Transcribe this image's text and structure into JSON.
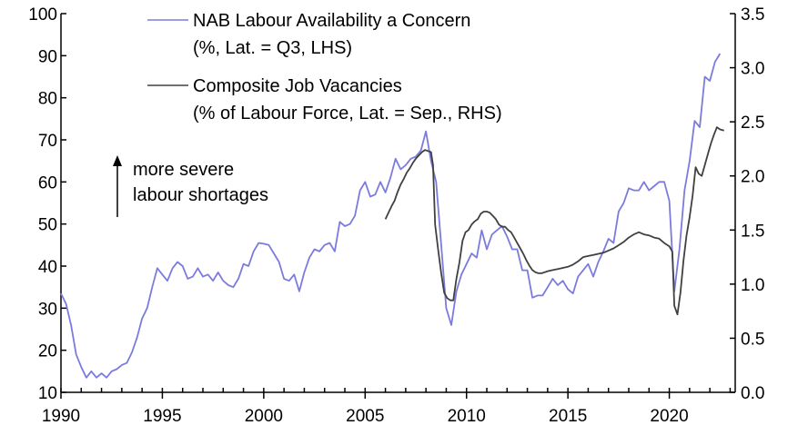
{
  "chart_data": {
    "type": "line",
    "title": "",
    "xlabel": "",
    "ylabel": "",
    "x_ticks": [
      "1990",
      "1995",
      "2000",
      "2005",
      "2010",
      "2015",
      "2020"
    ],
    "x_range": [
      1990.0,
      2023.25
    ],
    "y_left": {
      "range": [
        10,
        100
      ],
      "ticks": [
        "10",
        "20",
        "30",
        "40",
        "50",
        "60",
        "70",
        "80",
        "90",
        "100"
      ]
    },
    "y_right": {
      "range": [
        0.0,
        3.5
      ],
      "ticks": [
        "0.0",
        "0.5",
        "1.0",
        "1.5",
        "2.0",
        "2.5",
        "3.0",
        "3.5"
      ]
    },
    "grid": false,
    "legend_position": "top-center",
    "series": [
      {
        "name": "NAB Labour Availability a Concern",
        "name_line2": "(%, Lat. = Q3, LHS)",
        "axis": "left",
        "color": "#7b7bdf",
        "points": [
          [
            1990.0,
            33.5
          ],
          [
            1990.25,
            31.0
          ],
          [
            1990.5,
            26.0
          ],
          [
            1990.75,
            19.0
          ],
          [
            1991.0,
            16.0
          ],
          [
            1991.25,
            13.5
          ],
          [
            1991.5,
            15.0
          ],
          [
            1991.75,
            13.5
          ],
          [
            1992.0,
            14.5
          ],
          [
            1992.25,
            13.5
          ],
          [
            1992.5,
            15.0
          ],
          [
            1992.75,
            15.5
          ],
          [
            1993.0,
            16.5
          ],
          [
            1993.25,
            17.0
          ],
          [
            1993.5,
            19.5
          ],
          [
            1993.75,
            23.0
          ],
          [
            1994.0,
            27.5
          ],
          [
            1994.25,
            30.0
          ],
          [
            1994.5,
            35.0
          ],
          [
            1994.75,
            39.5
          ],
          [
            1995.0,
            38.0
          ],
          [
            1995.25,
            36.5
          ],
          [
            1995.5,
            39.5
          ],
          [
            1995.75,
            41.0
          ],
          [
            1996.0,
            40.0
          ],
          [
            1996.25,
            37.0
          ],
          [
            1996.5,
            37.5
          ],
          [
            1996.75,
            39.5
          ],
          [
            1997.0,
            37.5
          ],
          [
            1997.25,
            38.0
          ],
          [
            1997.5,
            36.5
          ],
          [
            1997.75,
            38.5
          ],
          [
            1998.0,
            36.5
          ],
          [
            1998.25,
            35.5
          ],
          [
            1998.5,
            35.0
          ],
          [
            1998.75,
            37.0
          ],
          [
            1999.0,
            40.5
          ],
          [
            1999.25,
            40.0
          ],
          [
            1999.5,
            43.5
          ],
          [
            1999.75,
            45.5
          ],
          [
            2000.0,
            45.3
          ],
          [
            2000.25,
            45.0
          ],
          [
            2000.5,
            43.0
          ],
          [
            2000.75,
            41.0
          ],
          [
            2001.0,
            37.0
          ],
          [
            2001.25,
            36.5
          ],
          [
            2001.5,
            38.0
          ],
          [
            2001.75,
            34.0
          ],
          [
            2002.0,
            38.5
          ],
          [
            2002.25,
            42.0
          ],
          [
            2002.5,
            44.0
          ],
          [
            2002.75,
            43.5
          ],
          [
            2003.0,
            45.0
          ],
          [
            2003.25,
            45.5
          ],
          [
            2003.5,
            43.5
          ],
          [
            2003.75,
            50.5
          ],
          [
            2004.0,
            49.5
          ],
          [
            2004.25,
            50.0
          ],
          [
            2004.5,
            52.0
          ],
          [
            2004.75,
            58.0
          ],
          [
            2005.0,
            60.0
          ],
          [
            2005.25,
            56.5
          ],
          [
            2005.5,
            57.0
          ],
          [
            2005.75,
            60.0
          ],
          [
            2006.0,
            57.5
          ],
          [
            2006.25,
            61.0
          ],
          [
            2006.5,
            65.5
          ],
          [
            2006.75,
            63.0
          ],
          [
            2007.0,
            64.0
          ],
          [
            2007.25,
            65.5
          ],
          [
            2007.5,
            66.0
          ],
          [
            2007.75,
            67.5
          ],
          [
            2008.0,
            72.0
          ],
          [
            2008.25,
            65.0
          ],
          [
            2008.5,
            60.0
          ],
          [
            2008.75,
            45.0
          ],
          [
            2009.0,
            30.0
          ],
          [
            2009.25,
            26.0
          ],
          [
            2009.5,
            34.0
          ],
          [
            2009.75,
            38.0
          ],
          [
            2010.0,
            40.5
          ],
          [
            2010.25,
            43.0
          ],
          [
            2010.5,
            42.0
          ],
          [
            2010.75,
            48.5
          ],
          [
            2011.0,
            44.0
          ],
          [
            2011.25,
            47.5
          ],
          [
            2011.5,
            48.5
          ],
          [
            2011.75,
            49.5
          ],
          [
            2012.0,
            47.0
          ],
          [
            2012.25,
            44.0
          ],
          [
            2012.5,
            44.0
          ],
          [
            2012.75,
            39.0
          ],
          [
            2013.0,
            39.0
          ],
          [
            2013.25,
            32.5
          ],
          [
            2013.5,
            33.0
          ],
          [
            2013.75,
            33.0
          ],
          [
            2014.0,
            35.0
          ],
          [
            2014.25,
            37.0
          ],
          [
            2014.5,
            35.5
          ],
          [
            2014.75,
            36.5
          ],
          [
            2015.0,
            34.5
          ],
          [
            2015.25,
            33.5
          ],
          [
            2015.5,
            37.5
          ],
          [
            2015.75,
            39.0
          ],
          [
            2016.0,
            40.5
          ],
          [
            2016.25,
            37.5
          ],
          [
            2016.5,
            41.0
          ],
          [
            2016.75,
            43.5
          ],
          [
            2017.0,
            46.5
          ],
          [
            2017.25,
            45.5
          ],
          [
            2017.5,
            53.0
          ],
          [
            2017.75,
            55.0
          ],
          [
            2018.0,
            58.5
          ],
          [
            2018.25,
            58.0
          ],
          [
            2018.5,
            58.0
          ],
          [
            2018.75,
            60.0
          ],
          [
            2019.0,
            58.0
          ],
          [
            2019.25,
            59.0
          ],
          [
            2019.5,
            60.0
          ],
          [
            2019.75,
            60.0
          ],
          [
            2020.0,
            55.5
          ],
          [
            2020.25,
            34.0
          ],
          [
            2020.5,
            44.0
          ],
          [
            2020.75,
            58.0
          ],
          [
            2021.0,
            65.0
          ],
          [
            2021.25,
            74.5
          ],
          [
            2021.5,
            73.0
          ],
          [
            2021.75,
            85.0
          ],
          [
            2022.0,
            84.0
          ],
          [
            2022.25,
            88.5
          ],
          [
            2022.5,
            90.5
          ]
        ]
      },
      {
        "name": "Composite Job Vacancies",
        "name_line2": "(% of Labour Force, Lat. = Sep., RHS)",
        "axis": "right",
        "color": "#404040",
        "points": [
          [
            2006.0,
            1.6
          ],
          [
            2006.15,
            1.66
          ],
          [
            2006.3,
            1.72
          ],
          [
            2006.45,
            1.77
          ],
          [
            2006.6,
            1.85
          ],
          [
            2006.75,
            1.92
          ],
          [
            2006.9,
            1.97
          ],
          [
            2007.05,
            2.03
          ],
          [
            2007.2,
            2.07
          ],
          [
            2007.35,
            2.12
          ],
          [
            2007.5,
            2.16
          ],
          [
            2007.65,
            2.19
          ],
          [
            2007.8,
            2.22
          ],
          [
            2007.95,
            2.24
          ],
          [
            2008.1,
            2.23
          ],
          [
            2008.25,
            2.22
          ],
          [
            2008.35,
            2.1
          ],
          [
            2008.45,
            1.55
          ],
          [
            2008.6,
            1.32
          ],
          [
            2008.75,
            1.1
          ],
          [
            2008.9,
            0.92
          ],
          [
            2009.05,
            0.87
          ],
          [
            2009.2,
            0.85
          ],
          [
            2009.35,
            0.85
          ],
          [
            2009.5,
            1.05
          ],
          [
            2009.65,
            1.2
          ],
          [
            2009.8,
            1.4
          ],
          [
            2009.95,
            1.48
          ],
          [
            2010.1,
            1.5
          ],
          [
            2010.25,
            1.55
          ],
          [
            2010.4,
            1.58
          ],
          [
            2010.55,
            1.6
          ],
          [
            2010.7,
            1.65
          ],
          [
            2010.85,
            1.67
          ],
          [
            2011.0,
            1.67
          ],
          [
            2011.15,
            1.66
          ],
          [
            2011.3,
            1.63
          ],
          [
            2011.45,
            1.6
          ],
          [
            2011.6,
            1.55
          ],
          [
            2011.75,
            1.53
          ],
          [
            2011.9,
            1.53
          ],
          [
            2012.05,
            1.5
          ],
          [
            2012.2,
            1.48
          ],
          [
            2012.35,
            1.43
          ],
          [
            2012.5,
            1.38
          ],
          [
            2012.65,
            1.33
          ],
          [
            2012.8,
            1.28
          ],
          [
            2012.95,
            1.22
          ],
          [
            2013.1,
            1.17
          ],
          [
            2013.25,
            1.13
          ],
          [
            2013.4,
            1.11
          ],
          [
            2013.55,
            1.1
          ],
          [
            2013.7,
            1.1
          ],
          [
            2013.85,
            1.11
          ],
          [
            2014.0,
            1.12
          ],
          [
            2014.25,
            1.13
          ],
          [
            2014.5,
            1.14
          ],
          [
            2014.75,
            1.15
          ],
          [
            2015.0,
            1.16
          ],
          [
            2015.25,
            1.18
          ],
          [
            2015.5,
            1.21
          ],
          [
            2015.75,
            1.25
          ],
          [
            2016.0,
            1.26
          ],
          [
            2016.25,
            1.27
          ],
          [
            2016.5,
            1.28
          ],
          [
            2016.75,
            1.29
          ],
          [
            2017.0,
            1.31
          ],
          [
            2017.25,
            1.33
          ],
          [
            2017.5,
            1.36
          ],
          [
            2017.75,
            1.39
          ],
          [
            2018.0,
            1.43
          ],
          [
            2018.25,
            1.46
          ],
          [
            2018.5,
            1.48
          ],
          [
            2018.75,
            1.46
          ],
          [
            2019.0,
            1.45
          ],
          [
            2019.25,
            1.43
          ],
          [
            2019.5,
            1.42
          ],
          [
            2019.75,
            1.38
          ],
          [
            2020.0,
            1.35
          ],
          [
            2020.15,
            1.3
          ],
          [
            2020.25,
            0.8
          ],
          [
            2020.4,
            0.72
          ],
          [
            2020.55,
            0.92
          ],
          [
            2020.7,
            1.22
          ],
          [
            2020.85,
            1.45
          ],
          [
            2021.0,
            1.62
          ],
          [
            2021.15,
            1.82
          ],
          [
            2021.3,
            2.08
          ],
          [
            2021.45,
            2.02
          ],
          [
            2021.6,
            2.0
          ],
          [
            2021.75,
            2.1
          ],
          [
            2021.9,
            2.2
          ],
          [
            2022.05,
            2.3
          ],
          [
            2022.2,
            2.38
          ],
          [
            2022.35,
            2.45
          ],
          [
            2022.5,
            2.43
          ],
          [
            2022.7,
            2.42
          ]
        ]
      }
    ],
    "annotation": {
      "line1": "more severe",
      "line2": "labour shortages",
      "arrow_direction": "up"
    }
  }
}
